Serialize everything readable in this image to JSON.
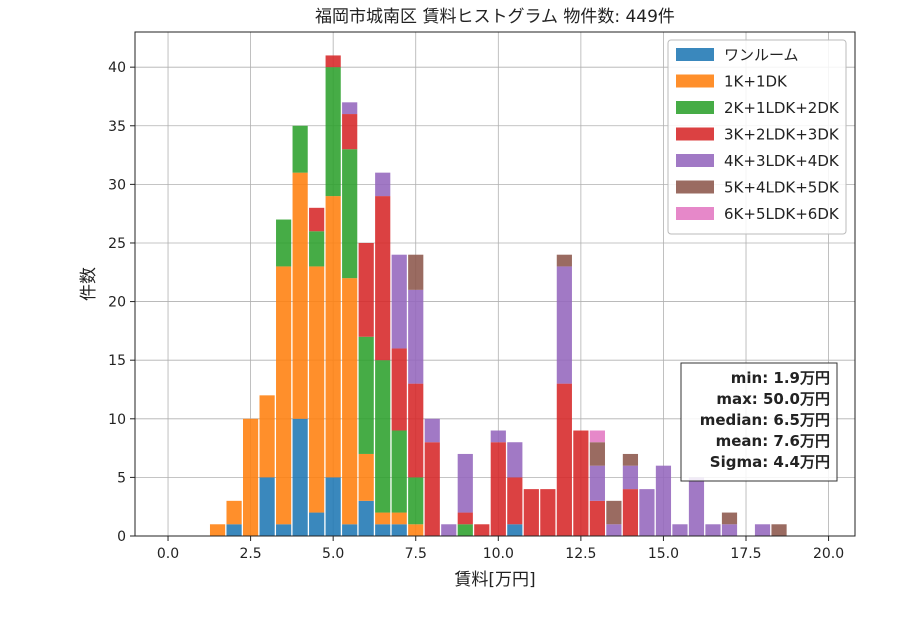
{
  "chart_data": {
    "type": "bar",
    "title": "福岡市城南区 賃料ヒストグラム 物件数: 449件",
    "xlabel": "賃料[万円]",
    "ylabel": "件数",
    "xlim": [
      -1.0,
      20.8
    ],
    "ylim": [
      0,
      43
    ],
    "bin_width": 0.5,
    "xticks": [
      "0.0",
      "2.5",
      "5.0",
      "7.5",
      "10.0",
      "12.5",
      "15.0",
      "17.5",
      "20.0"
    ],
    "yticks": [
      "0",
      "5",
      "10",
      "15",
      "20",
      "25",
      "30",
      "35",
      "40"
    ],
    "grid": true,
    "stacked": true,
    "legend_position": "top-right",
    "bins": [
      1.5,
      2.0,
      2.5,
      3.0,
      3.5,
      4.0,
      4.5,
      5.0,
      5.5,
      6.0,
      6.5,
      7.0,
      7.5,
      8.0,
      8.5,
      9.0,
      9.5,
      10.0,
      10.5,
      11.0,
      11.5,
      12.0,
      12.5,
      13.0,
      13.5,
      14.0,
      14.5,
      15.0,
      15.5,
      16.0,
      16.5,
      17.0,
      17.5,
      18.0,
      18.5
    ],
    "series": [
      {
        "name": "ワンルーム",
        "color": "#1f77b4",
        "values": [
          0,
          1,
          0,
          5,
          1,
          10,
          2,
          5,
          1,
          3,
          1,
          1,
          0,
          0,
          0,
          0,
          0,
          0,
          1,
          0,
          0,
          0,
          0,
          0,
          0,
          0,
          0,
          0,
          0,
          0,
          0,
          0,
          0,
          0,
          0
        ]
      },
      {
        "name": "1K+1DK",
        "color": "#ff7f0e",
        "values": [
          1,
          2,
          10,
          7,
          22,
          21,
          21,
          24,
          21,
          4,
          1,
          1,
          1,
          0,
          0,
          0,
          0,
          0,
          0,
          0,
          0,
          0,
          0,
          0,
          0,
          0,
          0,
          0,
          0,
          0,
          0,
          0,
          0,
          0,
          0
        ]
      },
      {
        "name": "2K+1LDK+2DK",
        "color": "#2ca02c",
        "values": [
          0,
          0,
          0,
          0,
          4,
          4,
          3,
          11,
          11,
          10,
          13,
          7,
          4,
          0,
          0,
          1,
          0,
          0,
          0,
          0,
          0,
          0,
          0,
          0,
          0,
          0,
          0,
          0,
          0,
          0,
          0,
          0,
          0,
          0,
          0
        ]
      },
      {
        "name": "3K+2LDK+3DK",
        "color": "#d62728",
        "values": [
          0,
          0,
          0,
          0,
          0,
          0,
          2,
          1,
          3,
          8,
          14,
          7,
          8,
          8,
          0,
          1,
          1,
          8,
          4,
          4,
          4,
          13,
          9,
          3,
          0,
          4,
          0,
          0,
          0,
          0,
          0,
          0,
          0,
          0,
          0
        ]
      },
      {
        "name": "4K+3LDK+4DK",
        "color": "#9467bd",
        "values": [
          0,
          0,
          0,
          0,
          0,
          0,
          0,
          0,
          1,
          0,
          2,
          8,
          8,
          2,
          1,
          5,
          0,
          1,
          3,
          0,
          0,
          10,
          0,
          3,
          1,
          2,
          4,
          6,
          1,
          5,
          1,
          1,
          0,
          1,
          0
        ]
      },
      {
        "name": "5K+4LDK+5DK",
        "color": "#8c564b",
        "values": [
          0,
          0,
          0,
          0,
          0,
          0,
          0,
          0,
          0,
          0,
          0,
          0,
          3,
          0,
          0,
          0,
          0,
          0,
          0,
          0,
          0,
          1,
          0,
          2,
          2,
          1,
          0,
          0,
          0,
          0,
          0,
          1,
          0,
          0,
          1
        ]
      },
      {
        "name": "6K+5LDK+6DK",
        "color": "#e377c2",
        "values": [
          0,
          0,
          0,
          0,
          0,
          0,
          0,
          0,
          0,
          0,
          0,
          0,
          0,
          0,
          0,
          0,
          0,
          0,
          0,
          0,
          0,
          0,
          0,
          1,
          0,
          0,
          0,
          0,
          0,
          0,
          0,
          0,
          0,
          0,
          0
        ]
      }
    ],
    "stats": [
      "min: 1.9万円",
      "max: 50.0万円",
      "median: 6.5万円",
      "mean: 7.6万円",
      "Sigma: 4.4万円"
    ]
  }
}
